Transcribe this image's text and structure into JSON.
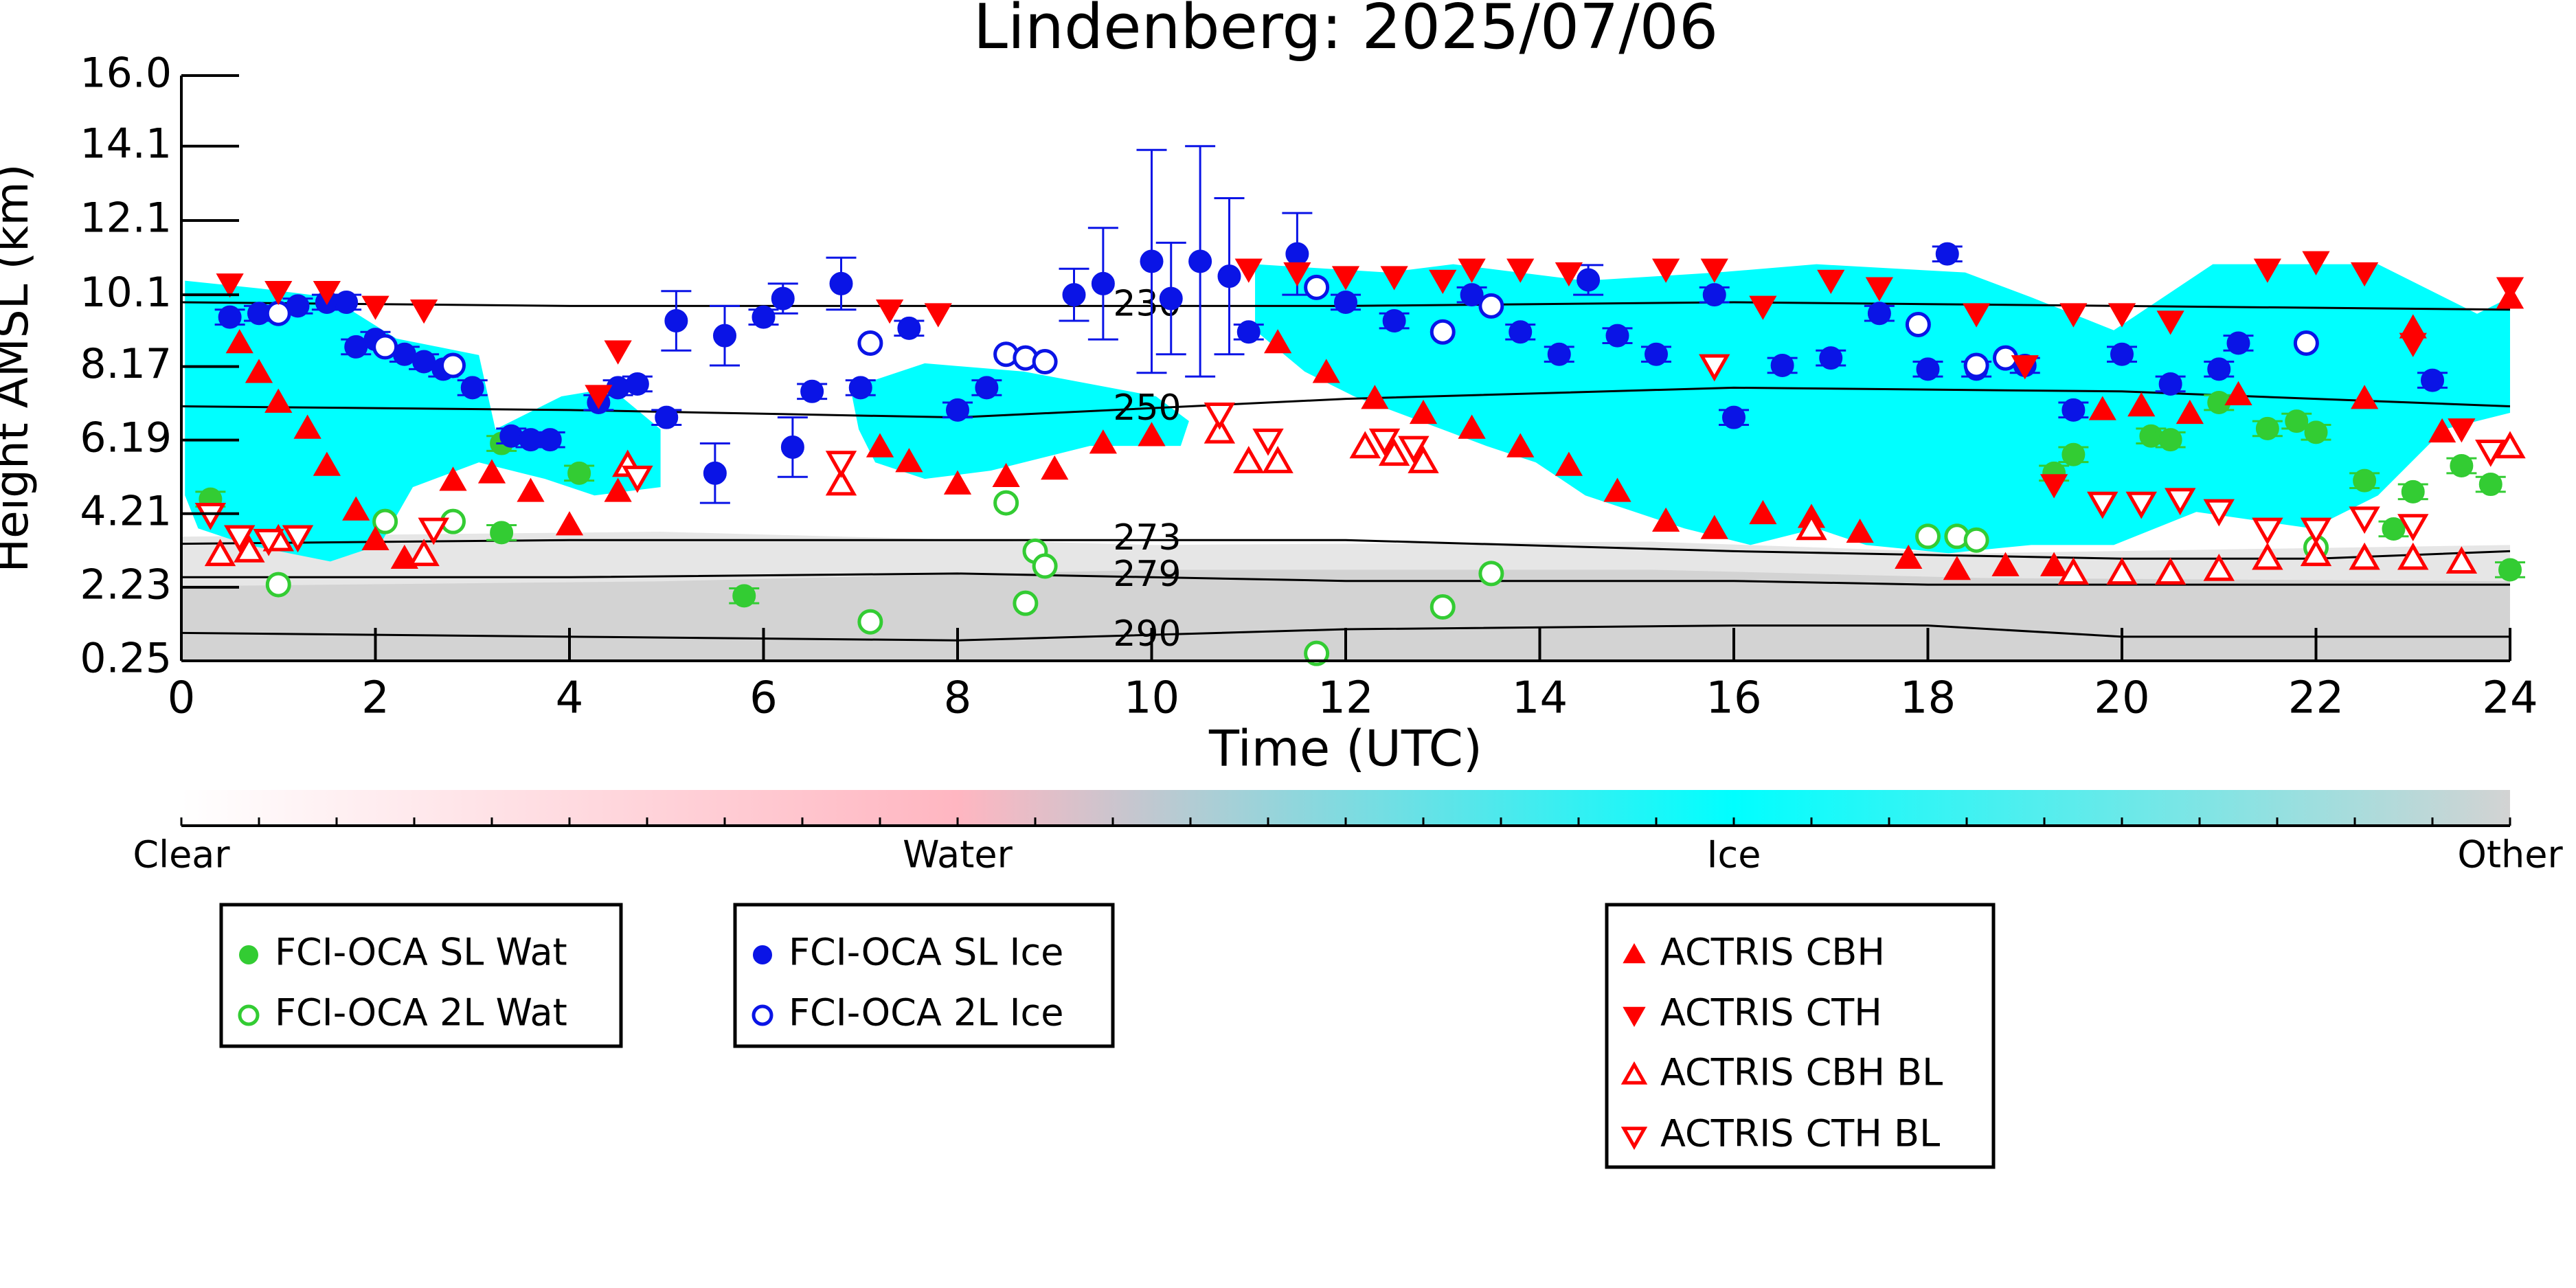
{
  "chart_data": {
    "type": "scatter",
    "title": "Lindenberg: 2025/07/06",
    "xlabel": "Time (UTC)",
    "ylabel": "Height AMSL (km)",
    "xlim": [
      0,
      24
    ],
    "xticks": [
      0,
      2,
      4,
      6,
      8,
      10,
      12,
      14,
      16,
      18,
      20,
      22,
      24
    ],
    "ylim": [
      0.25,
      16
    ],
    "yticks": [
      0.25,
      2.23,
      4.21,
      6.19,
      8.17,
      10.1,
      12.1,
      14.1,
      {
        "value": 16,
        "label": "16.0"
      }
    ],
    "colorbar": {
      "labels": [
        "Clear",
        "Water",
        "Ice",
        "Other"
      ],
      "colors": [
        "#ffffff",
        "#ffb6c1",
        "#00ffff",
        "#d3d3d3"
      ]
    },
    "contours": [
      {
        "level": 230,
        "x": [
          0,
          4,
          8,
          12,
          16,
          20,
          24
        ],
        "y": [
          9.9,
          9.8,
          9.8,
          9.8,
          9.9,
          9.8,
          9.7
        ]
      },
      {
        "level": 250,
        "x": [
          0,
          4,
          8,
          12,
          16,
          20,
          24
        ],
        "y": [
          7.1,
          7.0,
          6.8,
          7.3,
          7.6,
          7.5,
          7.1
        ]
      },
      {
        "level": 273,
        "x": [
          0,
          4,
          8,
          12,
          16,
          20,
          22,
          24
        ],
        "y": [
          3.4,
          3.5,
          3.5,
          3.5,
          3.2,
          3.0,
          3.0,
          3.2
        ]
      },
      {
        "level": 279,
        "x": [
          0,
          4,
          8,
          12,
          16,
          18,
          24
        ],
        "y": [
          2.5,
          2.5,
          2.6,
          2.4,
          2.4,
          2.3,
          2.3
        ]
      },
      {
        "level": 290,
        "x": [
          0,
          4,
          8,
          12,
          16,
          18,
          20,
          24
        ],
        "y": [
          1.0,
          0.9,
          0.8,
          1.1,
          1.2,
          1.2,
          0.9,
          0.9
        ]
      }
    ],
    "series": [
      {
        "name": "FCI-OCA SL Wat",
        "color": "#33cc33",
        "marker": "circle",
        "filled": true,
        "x": [
          0.3,
          3.3,
          3.3,
          4.1,
          5.8,
          19.3,
          19.5,
          20.3,
          20.5,
          21.0,
          21.5,
          21.8,
          22.0,
          22.5,
          22.8,
          23.0,
          23.5,
          23.8,
          24.0
        ],
        "y": [
          4.6,
          6.1,
          3.7,
          5.3,
          2.0,
          5.3,
          5.8,
          6.3,
          6.2,
          7.2,
          6.5,
          6.7,
          6.4,
          5.1,
          3.8,
          4.8,
          5.5,
          5.0,
          2.7
        ],
        "yerr": [
          0.2,
          0.2,
          0.2,
          0.2,
          0.2,
          0.2,
          0.2,
          0.2,
          0.2,
          0.2,
          0.2,
          0.2,
          0.2,
          0.2,
          0.2,
          0.2,
          0.2,
          0.2,
          0.2
        ]
      },
      {
        "name": "FCI-OCA 2L Wat",
        "color": "#33cc33",
        "marker": "circle",
        "filled": false,
        "x": [
          1.0,
          2.1,
          2.8,
          7.1,
          8.5,
          8.7,
          8.8,
          8.9,
          11.7,
          13.0,
          13.5,
          18.0,
          18.3,
          18.5,
          22.0
        ],
        "y": [
          2.3,
          4.0,
          4.0,
          1.3,
          4.5,
          1.8,
          3.2,
          2.8,
          0.45,
          1.7,
          2.6,
          3.6,
          3.6,
          3.5,
          3.3
        ]
      },
      {
        "name": "FCI-OCA SL Ice",
        "color": "#0a14e6",
        "marker": "circle",
        "filled": true,
        "x": [
          0.5,
          0.8,
          1.2,
          1.5,
          1.7,
          1.8,
          2.0,
          2.3,
          2.5,
          2.7,
          3.0,
          3.4,
          3.6,
          3.8,
          4.3,
          4.5,
          4.7,
          5.0,
          5.1,
          5.5,
          5.6,
          6.0,
          6.2,
          6.3,
          6.5,
          6.8,
          7.0,
          7.5,
          8.0,
          8.3,
          9.2,
          9.5,
          10.0,
          10.2,
          10.5,
          10.8,
          11.0,
          11.5,
          12.0,
          12.5,
          13.3,
          13.8,
          14.2,
          14.5,
          14.8,
          15.2,
          15.8,
          16.0,
          16.5,
          17.0,
          17.5,
          18.0,
          18.2,
          18.5,
          19.0,
          19.5,
          20.0,
          20.5,
          21.0,
          21.2,
          23.2
        ],
        "y": [
          9.5,
          9.6,
          9.8,
          9.9,
          9.9,
          8.7,
          8.9,
          8.5,
          8.3,
          8.1,
          7.6,
          6.3,
          6.2,
          6.2,
          7.2,
          7.6,
          7.7,
          6.8,
          9.4,
          5.3,
          9.0,
          9.5,
          10.0,
          6.0,
          7.5,
          10.4,
          7.6,
          9.2,
          7.0,
          7.6,
          10.1,
          10.4,
          11.0,
          10.0,
          11.0,
          10.6,
          9.1,
          11.2,
          9.9,
          9.4,
          10.1,
          9.1,
          8.5,
          10.5,
          9.0,
          8.5,
          10.1,
          6.8,
          8.2,
          8.4,
          9.6,
          8.1,
          11.2,
          8.1,
          8.2,
          7.0,
          8.5,
          7.7,
          8.1,
          8.8,
          7.8
        ],
        "yerr": [
          0.2,
          0.2,
          0.2,
          0.2,
          0.2,
          0.2,
          0.2,
          0.2,
          0.2,
          0.2,
          0.2,
          0.2,
          0.2,
          0.2,
          0.2,
          0.2,
          0.2,
          0.2,
          0.8,
          0.8,
          0.8,
          0.2,
          0.4,
          0.8,
          0.2,
          0.7,
          0.2,
          0.2,
          0.2,
          0.2,
          0.7,
          1.5,
          3.0,
          1.5,
          3.1,
          2.1,
          0.2,
          1.1,
          0.2,
          0.2,
          0.2,
          0.2,
          0.2,
          0.4,
          0.2,
          0.2,
          0.2,
          0.2,
          0.2,
          0.2,
          0.2,
          0.2,
          0.2,
          0.2,
          0.2,
          0.2,
          0.2,
          0.2,
          0.2,
          0.2,
          0.2
        ]
      },
      {
        "name": "FCI-OCA 2L Ice",
        "color": "#0a14e6",
        "marker": "circle",
        "filled": false,
        "x": [
          1.0,
          2.1,
          2.8,
          7.1,
          8.5,
          8.7,
          8.9,
          11.7,
          13.0,
          13.5,
          17.9,
          18.5,
          18.8,
          21.9
        ],
        "y": [
          9.6,
          8.7,
          8.2,
          8.8,
          8.5,
          8.4,
          8.3,
          10.3,
          9.1,
          9.8,
          9.3,
          8.2,
          8.4,
          8.8
        ]
      },
      {
        "name": "ACTRIS CBH",
        "color": "#ff0000",
        "marker": "triangle-up",
        "filled": true,
        "x": [
          0.6,
          0.8,
          1.0,
          1.3,
          1.5,
          1.8,
          2.0,
          2.3,
          2.8,
          3.2,
          3.6,
          4.0,
          4.5,
          7.2,
          7.5,
          8.0,
          8.5,
          9.0,
          9.5,
          10.0,
          11.3,
          11.8,
          12.3,
          12.8,
          13.3,
          13.8,
          14.3,
          14.8,
          15.3,
          15.8,
          16.3,
          16.8,
          17.3,
          17.8,
          18.3,
          18.8,
          19.3,
          19.8,
          20.2,
          20.7,
          21.2,
          22.5,
          23.0,
          23.3,
          24.0
        ],
        "y": [
          8.8,
          8.0,
          7.2,
          6.5,
          5.5,
          4.3,
          3.5,
          3.0,
          5.1,
          5.3,
          4.8,
          3.9,
          4.8,
          6.0,
          5.6,
          5.0,
          5.2,
          5.4,
          6.1,
          6.3,
          8.8,
          8.0,
          7.3,
          6.9,
          6.5,
          6.0,
          5.5,
          4.8,
          4.0,
          3.8,
          4.2,
          4.1,
          3.7,
          3.0,
          2.7,
          2.8,
          2.8,
          7.0,
          7.1,
          6.9,
          7.4,
          7.3,
          9.2,
          6.4,
          10.0
        ]
      },
      {
        "name": "ACTRIS CTH",
        "color": "#ff0000",
        "marker": "triangle-down",
        "filled": true,
        "x": [
          0.5,
          1.0,
          1.5,
          2.0,
          2.5,
          4.3,
          4.5,
          7.3,
          7.8,
          11.0,
          11.5,
          12.0,
          12.5,
          13.0,
          13.3,
          13.8,
          14.3,
          15.3,
          15.8,
          16.3,
          17.0,
          17.5,
          18.5,
          19.0,
          19.3,
          19.5,
          20.0,
          20.5,
          21.5,
          22.0,
          22.5,
          23.0,
          23.5,
          24.0
        ],
        "y": [
          10.4,
          10.2,
          10.2,
          9.8,
          9.7,
          7.4,
          8.6,
          9.7,
          9.6,
          10.8,
          10.7,
          10.6,
          10.6,
          10.5,
          10.8,
          10.8,
          10.7,
          10.8,
          10.8,
          9.8,
          10.5,
          10.3,
          9.6,
          8.2,
          5.0,
          9.6,
          9.6,
          9.4,
          10.8,
          11.0,
          10.7,
          8.8,
          6.5,
          10.3
        ]
      },
      {
        "name": "ACTRIS CBH BL",
        "color": "#ff0000",
        "marker": "triangle-up",
        "filled": false,
        "x": [
          0.4,
          0.7,
          1.0,
          2.5,
          4.6,
          6.8,
          10.7,
          11.0,
          11.3,
          12.2,
          12.5,
          12.8,
          16.8,
          19.5,
          20.0,
          20.5,
          21.0,
          21.5,
          22.0,
          22.5,
          23.0,
          23.5,
          24.0
        ],
        "y": [
          3.1,
          3.2,
          3.5,
          3.1,
          5.5,
          5.0,
          6.4,
          5.6,
          5.6,
          6.0,
          5.8,
          5.6,
          3.8,
          2.6,
          2.6,
          2.6,
          2.7,
          3.0,
          3.1,
          3.0,
          3.0,
          2.9,
          6.0
        ]
      },
      {
        "name": "ACTRIS CTH BL",
        "color": "#ff0000",
        "marker": "triangle-down",
        "filled": false,
        "x": [
          0.3,
          0.6,
          0.9,
          1.2,
          2.6,
          4.7,
          6.8,
          10.7,
          11.2,
          12.4,
          12.7,
          15.8,
          19.8,
          20.2,
          20.6,
          21.0,
          21.5,
          22.0,
          22.5,
          23.0,
          23.8
        ],
        "y": [
          4.2,
          3.6,
          3.5,
          3.6,
          3.8,
          5.2,
          5.6,
          6.9,
          6.2,
          6.2,
          6.0,
          8.2,
          4.5,
          4.5,
          4.6,
          4.3,
          3.8,
          3.8,
          4.1,
          3.9,
          5.9
        ]
      }
    ]
  }
}
